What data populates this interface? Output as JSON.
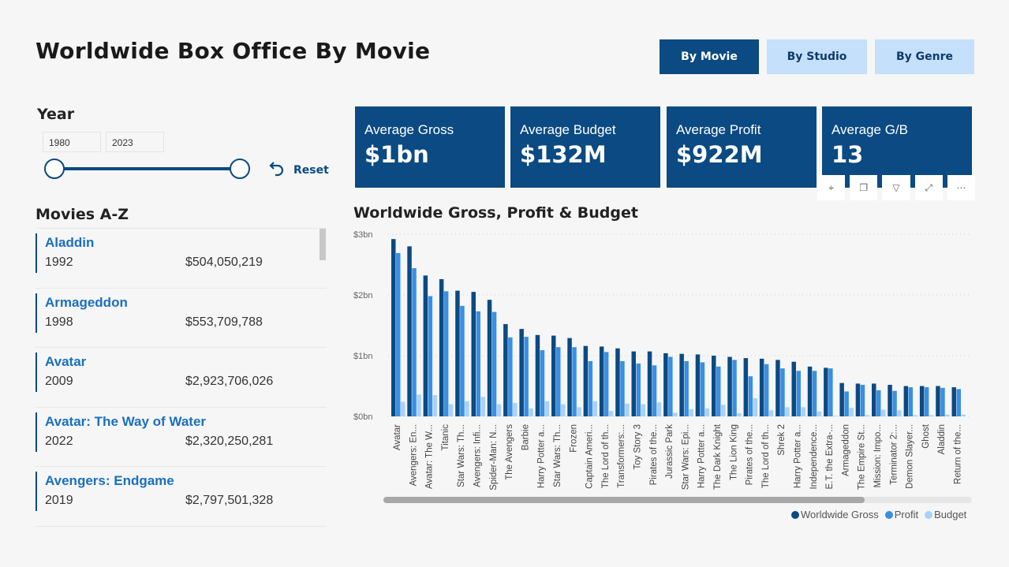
{
  "title": "Worldwide Box Office By Movie",
  "nav": {
    "by_movie": "By Movie",
    "by_studio": "By Studio",
    "by_genre": "By Genre"
  },
  "year_filter": {
    "label": "Year",
    "start": "1980",
    "end": "2023",
    "reset": "Reset"
  },
  "movies_title": "Movies A-Z",
  "movies": [
    {
      "name": "Aladdin",
      "year": "1992",
      "gross": "$504,050,219"
    },
    {
      "name": "Armageddon",
      "year": "1998",
      "gross": "$553,709,788"
    },
    {
      "name": "Avatar",
      "year": "2009",
      "gross": "$2,923,706,026"
    },
    {
      "name": "Avatar: The Way of Water",
      "year": "2022",
      "gross": "$2,320,250,281"
    },
    {
      "name": "Avengers: Endgame",
      "year": "2019",
      "gross": "$2,797,501,328"
    }
  ],
  "kpis": [
    {
      "label": "Average Gross",
      "value": "$1bn"
    },
    {
      "label": "Average Budget",
      "value": "$132M"
    },
    {
      "label": "Average Profit",
      "value": "$922M"
    },
    {
      "label": "Average G/B",
      "value": "13"
    }
  ],
  "colors": {
    "gross": "#0b4a82",
    "profit": "#3a8fe0",
    "budget": "#a9d2f6",
    "primary": "#0b4a82",
    "secondary": "#c4e0fa"
  },
  "chart_data": {
    "type": "bar",
    "title": "Worldwide Gross, Profit & Budget",
    "ylim": [
      0,
      3
    ],
    "yticks": [
      "$0bn",
      "$1bn",
      "$2bn",
      "$3bn"
    ],
    "grid": true,
    "legend_position": "bottom-right",
    "categories": [
      "Avatar",
      "Avengers: En...",
      "Avatar: The W...",
      "Titanic",
      "Star Wars: Th...",
      "Avengers: Infi...",
      "Spider-Man: N...",
      "The Avengers",
      "Barbie",
      "Harry Potter a...",
      "Star Wars: Th...",
      "Frozen",
      "Captain Ameri...",
      "The Lord of th...",
      "Transformers:...",
      "Toy Story 3",
      "Pirates of the...",
      "Jurassic Park",
      "Star Wars: Epi...",
      "Harry Potter a...",
      "The Dark Knight",
      "The Lion King",
      "Pirates of the...",
      "The Lord of th...",
      "Shrek 2",
      "Harry Potter a...",
      "Independence...",
      "E.T. the Extra-...",
      "Armageddon",
      "The Empire St...",
      "Mission: Impo...",
      "Terminator 2:...",
      "Demon Slayer...",
      "Ghost",
      "Aladdin",
      "Return of the..."
    ],
    "series": [
      {
        "name": "Worldwide Gross",
        "values": [
          2.92,
          2.8,
          2.32,
          2.26,
          2.07,
          2.05,
          1.92,
          1.52,
          1.44,
          1.34,
          1.33,
          1.29,
          1.16,
          1.15,
          1.12,
          1.07,
          1.07,
          1.04,
          1.03,
          1.02,
          1.0,
          0.98,
          0.96,
          0.95,
          0.93,
          0.9,
          0.82,
          0.8,
          0.55,
          0.54,
          0.54,
          0.52,
          0.5,
          0.5,
          0.5,
          0.48
        ]
      },
      {
        "name": "Profit",
        "values": [
          2.69,
          2.44,
          1.98,
          2.06,
          1.82,
          1.73,
          1.72,
          1.3,
          1.31,
          1.09,
          1.14,
          1.14,
          0.91,
          1.06,
          0.91,
          0.87,
          0.84,
          0.98,
          0.91,
          0.89,
          0.82,
          0.93,
          0.66,
          0.86,
          0.79,
          0.75,
          0.75,
          0.79,
          0.41,
          0.52,
          0.43,
          0.42,
          0.48,
          0.48,
          0.47,
          0.45
        ]
      },
      {
        "name": "Budget",
        "values": [
          0.24,
          0.36,
          0.35,
          0.2,
          0.25,
          0.32,
          0.2,
          0.22,
          0.13,
          0.25,
          0.2,
          0.15,
          0.25,
          0.09,
          0.21,
          0.2,
          0.23,
          0.06,
          0.12,
          0.13,
          0.19,
          0.05,
          0.3,
          0.1,
          0.15,
          0.15,
          0.08,
          0.01,
          0.14,
          0.02,
          0.11,
          0.1,
          0.02,
          0.02,
          0.03,
          0.03
        ]
      }
    ]
  }
}
